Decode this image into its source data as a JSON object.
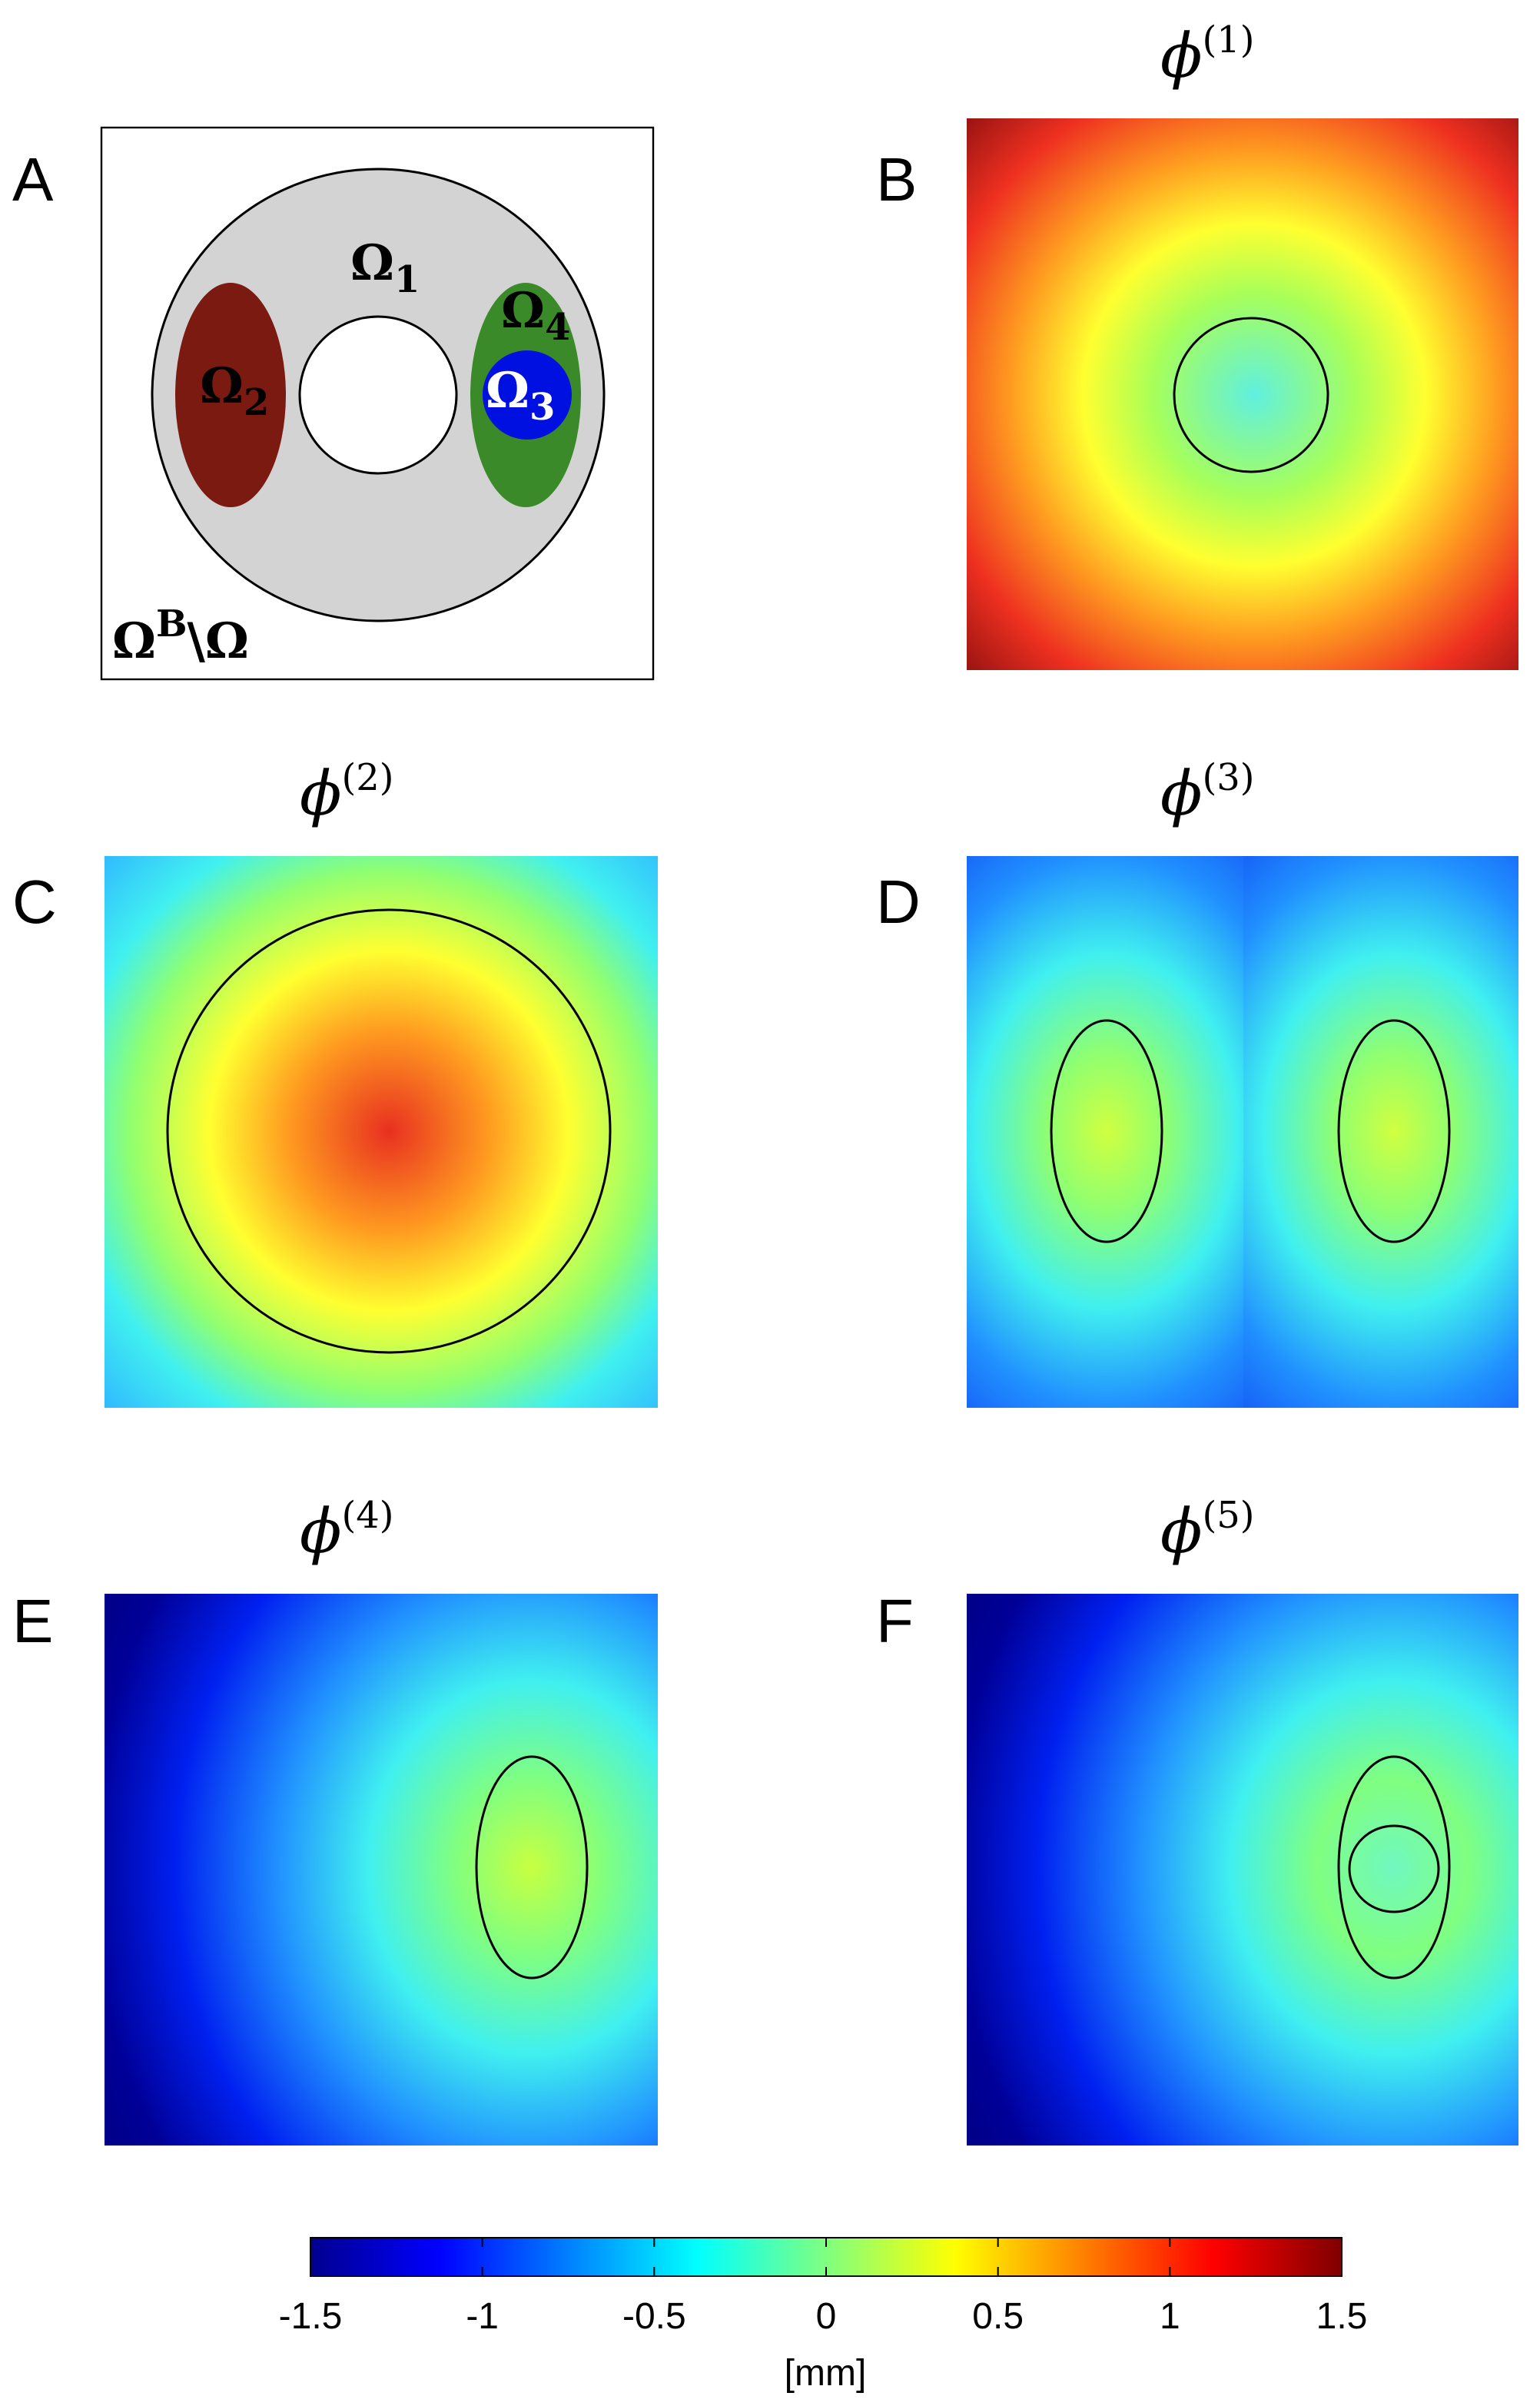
{
  "panels": [
    {
      "letter": "A",
      "regions": [
        {
          "symbol": "Ω",
          "subscript": "1"
        },
        {
          "symbol": "Ω",
          "subscript": "2"
        },
        {
          "symbol": "Ω",
          "subscript": "3"
        },
        {
          "symbol": "Ω",
          "subscript": "4"
        }
      ],
      "outside": {
        "symbol": "Ω",
        "superscript": "B",
        "rest": "\\Ω"
      }
    },
    {
      "letter": "B",
      "title": {
        "symbol": "ϕ",
        "superscript": "(1)"
      }
    },
    {
      "letter": "C",
      "title": {
        "symbol": "ϕ",
        "superscript": "(2)"
      }
    },
    {
      "letter": "D",
      "title": {
        "symbol": "ϕ",
        "superscript": "(3)"
      }
    },
    {
      "letter": "E",
      "title": {
        "symbol": "ϕ",
        "superscript": "(4)"
      }
    },
    {
      "letter": "F",
      "title": {
        "symbol": "ϕ",
        "superscript": "(5)"
      }
    }
  ],
  "colorbar": {
    "clim": [
      -1.5,
      1.5
    ],
    "ticks": [
      -1.5,
      -1,
      -0.5,
      0,
      0.5,
      1,
      1.5
    ],
    "label": "[mm]"
  }
}
